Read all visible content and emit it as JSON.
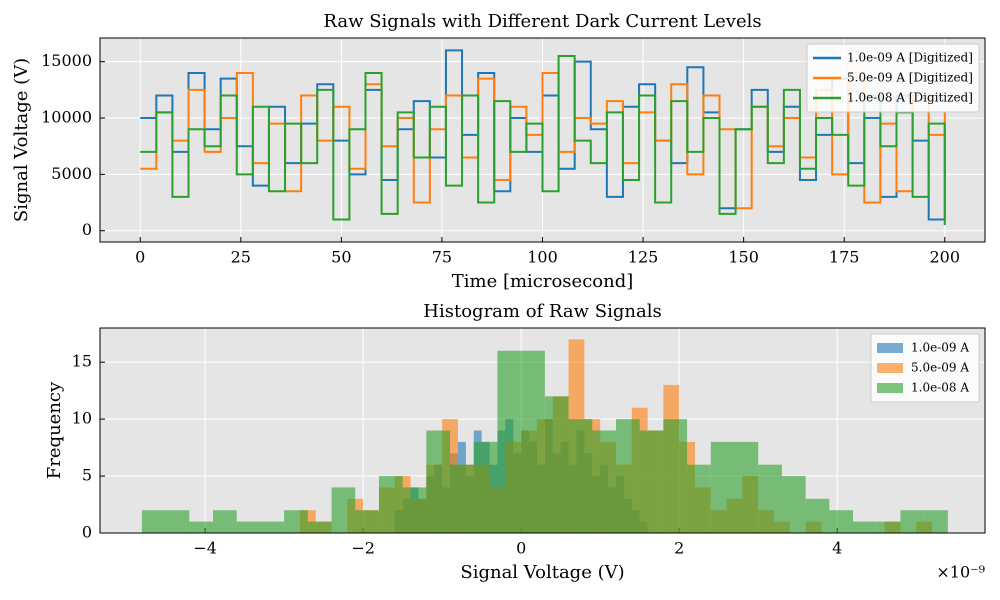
{
  "chart_data": [
    {
      "type": "line",
      "title": "Raw Signals with Different Dark Current Levels",
      "x_label": "Time [microsecond]",
      "y_label": "Signal Voltage (V)",
      "step": true,
      "grid": true,
      "legend": "upper right",
      "x": [
        0,
        4,
        8,
        12,
        16,
        20,
        24,
        28,
        32,
        36,
        40,
        44,
        48,
        52,
        56,
        60,
        64,
        68,
        72,
        76,
        80,
        84,
        88,
        92,
        96,
        100,
        104,
        108,
        112,
        116,
        120,
        124,
        128,
        132,
        136,
        140,
        144,
        148,
        152,
        156,
        160,
        164,
        168,
        172,
        176,
        180,
        184,
        188,
        192,
        196,
        200
      ],
      "series": [
        {
          "name": "1.0e-09 A [Digitized]",
          "color": "#1f77b4",
          "values": [
            10000,
            12000,
            7000,
            14000,
            9000,
            13500,
            7500,
            4000,
            11000,
            6000,
            9500,
            13000,
            8000,
            5000,
            12500,
            4500,
            9000,
            11500,
            6500,
            16000,
            8500,
            14000,
            3500,
            10000,
            7000,
            12000,
            5500,
            15000,
            9000,
            3000,
            11000,
            13000,
            8000,
            6000,
            14500,
            10500,
            2000,
            9000,
            12500,
            7000,
            11000,
            4500,
            8500,
            13500,
            6000,
            10000,
            3000,
            12000,
            8000,
            1000,
            9000
          ]
        },
        {
          "name": "5.0e-09 A [Digitized]",
          "color": "#ff7f0e",
          "values": [
            5500,
            10500,
            8000,
            12500,
            7000,
            10000,
            14000,
            6000,
            9500,
            3500,
            12000,
            8000,
            11000,
            5500,
            13000,
            7500,
            10000,
            2500,
            9000,
            12000,
            6500,
            13500,
            4500,
            11000,
            8500,
            14000,
            7000,
            10000,
            9500,
            11500,
            6000,
            10500,
            8000,
            13000,
            5000,
            12000,
            9000,
            2000,
            11000,
            7500,
            10000,
            6500,
            12500,
            5000,
            14000,
            2500,
            9500,
            3500,
            12000,
            8500,
            10500
          ]
        },
        {
          "name": "1.0e-08 A [Digitized]",
          "color": "#2ca02c",
          "values": [
            7000,
            10500,
            3000,
            9000,
            7500,
            12000,
            5000,
            11000,
            3500,
            9500,
            6000,
            12500,
            1000,
            9000,
            14000,
            1500,
            10500,
            6500,
            11000,
            4000,
            12000,
            2500,
            11500,
            7000,
            9500,
            3500,
            15500,
            8000,
            6000,
            10500,
            4500,
            12000,
            2500,
            11500,
            7000,
            10000,
            1500,
            9000,
            11000,
            6000,
            12500,
            5500,
            10000,
            8500,
            4000,
            12000,
            7500,
            10500,
            3000,
            9500,
            500
          ]
        }
      ],
      "xlim": [
        -10,
        210
      ],
      "xticks": [
        0,
        25,
        50,
        75,
        100,
        125,
        150,
        175,
        200
      ],
      "ylim": [
        -1000,
        17100
      ],
      "yticks": [
        0,
        5000,
        10000,
        15000
      ]
    },
    {
      "type": "histogram",
      "title": "Histogram of Raw Signals",
      "x_label": "Signal Voltage (V)",
      "y_label": "Frequency",
      "offset_text": "×10⁻⁹",
      "grid": true,
      "legend": "upper right",
      "opacity": 0.6,
      "series": [
        {
          "name": "1.0e-09 A",
          "color": "#1f77b4",
          "bins": [
            -1.6,
            -1.5,
            -1.4,
            -1.3,
            -1.2,
            -1.1,
            -1.0,
            -0.9,
            -0.8,
            -0.7,
            -0.6,
            -0.5,
            -0.4,
            -0.3,
            -0.2,
            -0.1,
            0,
            0.1,
            0.2,
            0.3,
            0.4,
            0.5,
            0.6,
            0.7,
            0.8,
            0.9,
            1.0,
            1.1,
            1.2,
            1.3,
            1.4,
            1.5,
            1.6
          ],
          "values": [
            2,
            3,
            4,
            3,
            5,
            6,
            4,
            7,
            8,
            5,
            9,
            8,
            6,
            9,
            10,
            7,
            9,
            8,
            6,
            10,
            7,
            8,
            6,
            9,
            7,
            5,
            6,
            4,
            5,
            3,
            2,
            1
          ]
        },
        {
          "name": "5.0e-09 A",
          "color": "#ff7f0e",
          "bins": [
            -2.8,
            -2.6,
            -2.4,
            -2.2,
            -2.0,
            -1.8,
            -1.6,
            -1.4,
            -1.2,
            -1.0,
            -0.8,
            -0.6,
            -0.4,
            -0.2,
            0,
            0.2,
            0.4,
            0.6,
            0.8,
            1.0,
            1.2,
            1.4,
            1.6,
            1.8,
            2.0,
            2.2,
            2.4,
            2.6,
            2.8,
            3.0,
            3.2,
            3.4,
            3.6,
            3.8,
            4.0,
            4.2,
            4.4,
            4.6,
            4.8,
            5.0,
            5.2
          ],
          "values": [
            2,
            1,
            0,
            3,
            2,
            4,
            5,
            3,
            6,
            10,
            6,
            6,
            4,
            8,
            9,
            10,
            12,
            17,
            10,
            8,
            6,
            11,
            9,
            13,
            8,
            4,
            2,
            3,
            5,
            2,
            1,
            0,
            1,
            0,
            0,
            0,
            0,
            1,
            0,
            1
          ]
        },
        {
          "name": "1.0e-08 A",
          "color": "#2ca02c",
          "bins": [
            -4.8,
            -4.5,
            -4.2,
            -3.9,
            -3.6,
            -3.3,
            -3.0,
            -2.7,
            -2.4,
            -2.1,
            -1.8,
            -1.5,
            -1.2,
            -0.9,
            -0.6,
            -0.3,
            0,
            0.3,
            0.6,
            0.9,
            1.2,
            1.5,
            1.8,
            2.1,
            2.4,
            2.7,
            3.0,
            3.3,
            3.6,
            3.9,
            4.2,
            4.5,
            4.8,
            5.1,
            5.4
          ],
          "values": [
            2,
            2,
            1,
            2,
            1,
            1,
            2,
            1,
            4,
            2,
            5,
            4,
            9,
            6,
            8,
            16,
            16,
            12,
            10,
            9,
            10,
            9,
            10,
            6,
            8,
            8,
            6,
            5,
            3,
            2,
            1,
            1,
            2,
            2
          ]
        }
      ],
      "xlim": [
        -5.33,
        5.87
      ],
      "xticks": [
        {
          "value": -4,
          "label": "−4"
        },
        {
          "value": -2,
          "label": "−2"
        },
        0,
        2,
        4
      ],
      "ylim": [
        0,
        18
      ],
      "yticks": [
        0,
        5,
        10,
        15
      ]
    }
  ]
}
